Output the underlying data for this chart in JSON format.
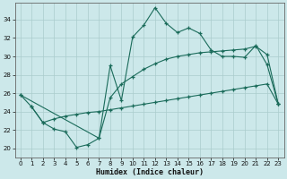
{
  "xlabel": "Humidex (Indice chaleur)",
  "bg_color": "#cce8ea",
  "grid_color": "#aacccc",
  "line_color": "#1a6b5a",
  "xlim": [
    -0.5,
    23.5
  ],
  "ylim": [
    19.0,
    35.8
  ],
  "xticks": [
    0,
    1,
    2,
    3,
    4,
    5,
    6,
    7,
    8,
    9,
    10,
    11,
    12,
    13,
    14,
    15,
    16,
    17,
    18,
    19,
    20,
    21,
    22,
    23
  ],
  "yticks": [
    20,
    22,
    24,
    26,
    28,
    30,
    32,
    34
  ],
  "series1_x": [
    0,
    1,
    2,
    3,
    4,
    5,
    6,
    7,
    8,
    9,
    10,
    11,
    12,
    13,
    14,
    15,
    16,
    17,
    18,
    19,
    20,
    21,
    22,
    23
  ],
  "series1_y": [
    25.8,
    24.5,
    22.8,
    22.1,
    21.8,
    20.1,
    20.4,
    21.1,
    29.0,
    25.2,
    32.1,
    33.4,
    35.3,
    33.6,
    32.6,
    33.1,
    32.5,
    30.7,
    30.0,
    30.0,
    29.9,
    31.2,
    29.1,
    24.8
  ],
  "series2_x": [
    0,
    7,
    8,
    9,
    10,
    11,
    12,
    13,
    14,
    15,
    16,
    17,
    18,
    19,
    20,
    21,
    22,
    23
  ],
  "series2_y": [
    25.8,
    21.1,
    25.5,
    27.0,
    27.8,
    28.6,
    29.2,
    29.7,
    30.0,
    30.2,
    30.4,
    30.5,
    30.6,
    30.7,
    30.8,
    31.1,
    30.2,
    24.8
  ],
  "series3_x": [
    1,
    2,
    3,
    4,
    5,
    6,
    7,
    8,
    9,
    10,
    11,
    12,
    13,
    14,
    15,
    16,
    17,
    18,
    19,
    20,
    21,
    22,
    23
  ],
  "series3_y": [
    24.5,
    22.8,
    23.2,
    23.5,
    23.7,
    23.9,
    24.0,
    24.2,
    24.4,
    24.6,
    24.8,
    25.0,
    25.2,
    25.4,
    25.6,
    25.8,
    26.0,
    26.2,
    26.4,
    26.6,
    26.8,
    27.0,
    24.8
  ]
}
